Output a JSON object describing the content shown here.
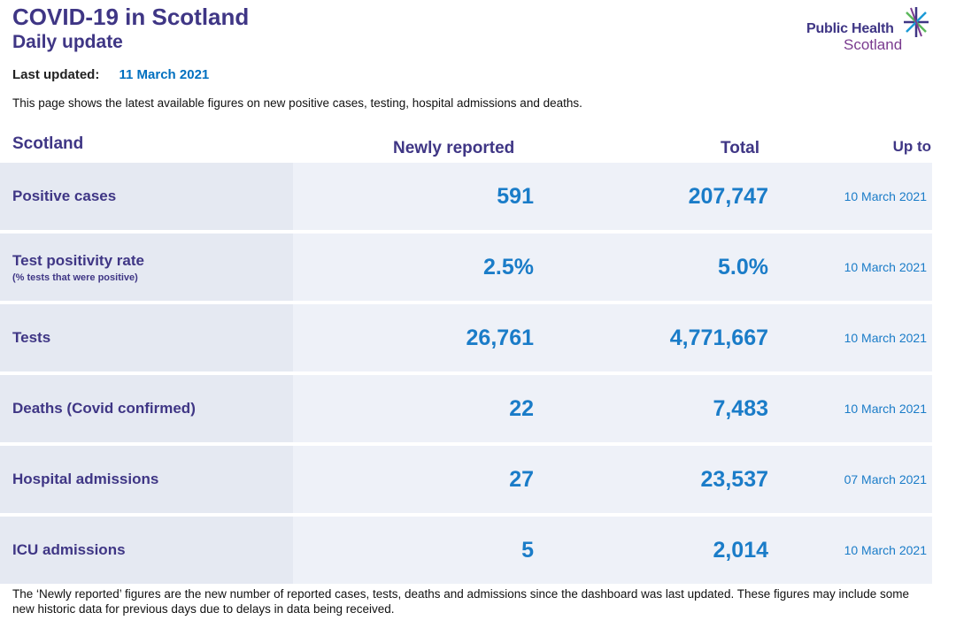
{
  "header": {
    "title": "COVID-19 in Scotland",
    "subtitle": "Daily update",
    "last_updated_label": "Last updated:",
    "last_updated_value": "11 March 2021"
  },
  "logo": {
    "line1": "Public Health",
    "line2": "Scotland",
    "icon": "star-burst-icon"
  },
  "intro": "This page shows the latest available figures on new positive cases, testing, hospital admissions and deaths.",
  "table": {
    "columns": [
      "Scotland",
      "Newly reported",
      "Total",
      "Up to"
    ],
    "rows": [
      {
        "label": "Positive cases",
        "note": "",
        "newly_reported": "591",
        "total": "207,747",
        "up_to": "10 March 2021"
      },
      {
        "label": "Test positivity rate",
        "note": "(% tests that were positive)",
        "newly_reported": "2.5%",
        "total": "5.0%",
        "up_to": "10 March 2021"
      },
      {
        "label": "Tests",
        "note": "",
        "newly_reported": "26,761",
        "total": "4,771,667",
        "up_to": "10 March 2021"
      },
      {
        "label": "Deaths (Covid confirmed)",
        "note": "",
        "newly_reported": "22",
        "total": "7,483",
        "up_to": "10 March 2021"
      },
      {
        "label": "Hospital admissions",
        "note": "",
        "newly_reported": "27",
        "total": "23,537",
        "up_to": "07 March 2021"
      },
      {
        "label": "ICU admissions",
        "note": "",
        "newly_reported": "5",
        "total": "2,014",
        "up_to": "10 March 2021"
      }
    ]
  },
  "footnote": "The ‘Newly reported’ figures are the new number of reported cases, tests, deaths and admissions since the dashboard was last updated. These figures may include some new historic data for previous days due to delays in data being received.",
  "colors": {
    "brand_purple": "#3f3685",
    "value_blue": "#1a7cc8",
    "row_bg": "#eef1f8",
    "label_bg": "#e5e9f2"
  }
}
